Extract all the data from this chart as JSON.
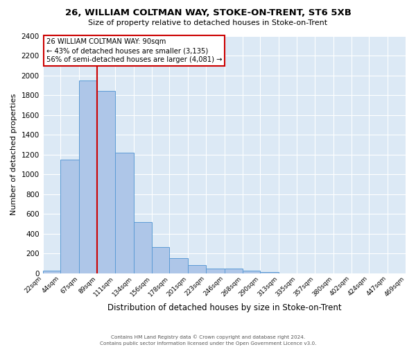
{
  "title1": "26, WILLIAM COLTMAN WAY, STOKE-ON-TRENT, ST6 5XB",
  "title2": "Size of property relative to detached houses in Stoke-on-Trent",
  "xlabel": "Distribution of detached houses by size in Stoke-on-Trent",
  "ylabel": "Number of detached properties",
  "bin_labels": [
    "22sqm",
    "44sqm",
    "67sqm",
    "89sqm",
    "111sqm",
    "134sqm",
    "156sqm",
    "178sqm",
    "201sqm",
    "223sqm",
    "246sqm",
    "268sqm",
    "290sqm",
    "313sqm",
    "335sqm",
    "357sqm",
    "380sqm",
    "402sqm",
    "424sqm",
    "447sqm",
    "469sqm"
  ],
  "bin_edges": [
    22,
    44,
    67,
    89,
    111,
    134,
    156,
    178,
    201,
    223,
    246,
    268,
    290,
    313,
    335,
    357,
    380,
    402,
    424,
    447,
    469
  ],
  "bar_heights": [
    30,
    1150,
    1950,
    1840,
    1220,
    520,
    265,
    150,
    80,
    50,
    50,
    30,
    15,
    0,
    0,
    0,
    0,
    0,
    0,
    0
  ],
  "bar_color": "#aec6e8",
  "bar_edge_color": "#5b9bd5",
  "red_line_x": 89,
  "annotation_box_text": "26 WILLIAM COLTMAN WAY: 90sqm\n← 43% of detached houses are smaller (3,135)\n56% of semi-detached houses are larger (4,081) →",
  "ylim": [
    0,
    2400
  ],
  "yticks": [
    0,
    200,
    400,
    600,
    800,
    1000,
    1200,
    1400,
    1600,
    1800,
    2000,
    2200,
    2400
  ],
  "footer1": "Contains HM Land Registry data © Crown copyright and database right 2024.",
  "footer2": "Contains public sector information licensed under the Open Government Licence v3.0.",
  "plot_bg_color": "#dce9f5",
  "fig_bg_color": "#ffffff",
  "grid_color": "#ffffff",
  "annotation_box_color": "#ffffff",
  "annotation_box_edge_color": "#cc0000",
  "red_line_color": "#cc0000"
}
